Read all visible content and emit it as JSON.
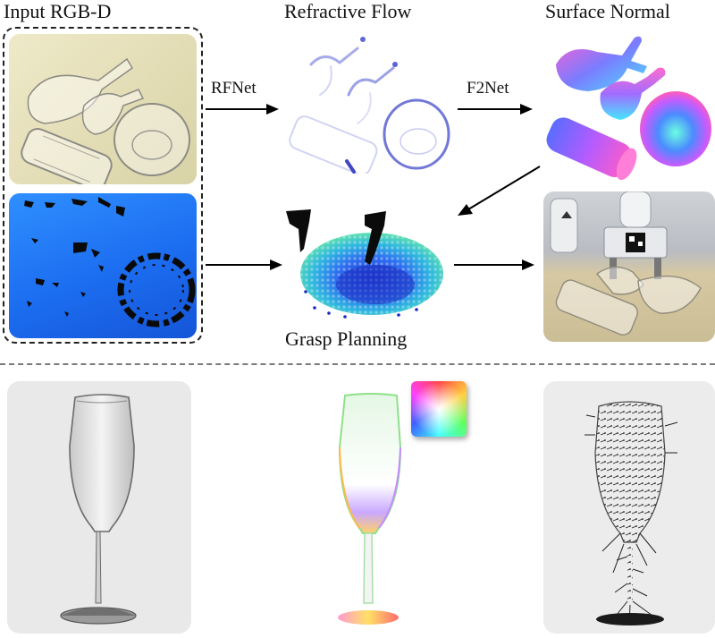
{
  "titles": {
    "input": "Input RGB-D",
    "flow": "Refractive Flow",
    "normal": "Surface Normal",
    "grasp": "Grasp Planning"
  },
  "arrows": {
    "rfnet": "RFNet",
    "f2net": "F2Net"
  },
  "icons": [
    "glass-objects-photo",
    "depth-map",
    "refractive-flow-map",
    "surface-normal-render",
    "grasp-point-cloud",
    "robot-grasp-photo",
    "champagne-glass",
    "color-wheel-icon",
    "normal-vector-field"
  ]
}
